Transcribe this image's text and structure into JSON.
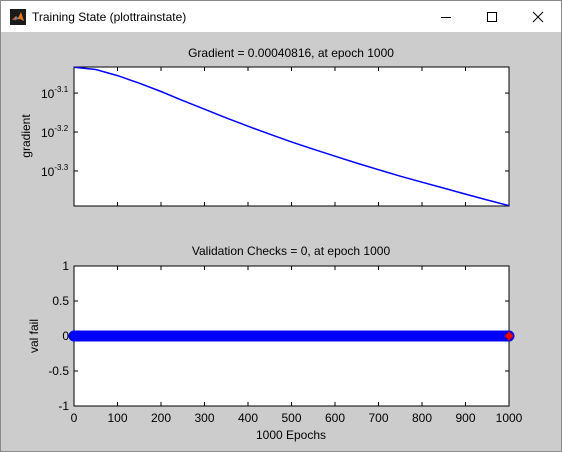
{
  "window": {
    "title": "Training State (plottrainstate)",
    "controls": [
      "minimize",
      "maximize",
      "close"
    ]
  },
  "colors": {
    "figure_bg": "#cccccc",
    "axes_bg": "#ffffff",
    "line": "#0000ff",
    "marker_end": "#ff0000"
  },
  "chart_data": [
    {
      "type": "line",
      "title": "Gradient = 0.00040816, at epoch 1000",
      "xlabel": "",
      "ylabel": "gradient",
      "yscale": "log",
      "xlim": [
        0,
        1000
      ],
      "ylim_log10": [
        -3.39,
        -3.033
      ],
      "yticks_log10": [
        -3.1,
        -3.2,
        -3.3
      ],
      "ytick_base": "10",
      "ytick_exponents": [
        "-3.1",
        "-3.2",
        "-3.3"
      ],
      "x": [
        0,
        50,
        100,
        150,
        200,
        250,
        300,
        350,
        400,
        450,
        500,
        550,
        600,
        650,
        700,
        750,
        800,
        850,
        900,
        950,
        1000
      ],
      "y": [
        0.000926,
        0.000913,
        0.000881,
        0.000842,
        0.000802,
        0.00076,
        0.000722,
        0.000686,
        0.000653,
        0.000623,
        0.000595,
        0.00057,
        0.000547,
        0.000525,
        0.000505,
        0.000486,
        0.000469,
        0.000453,
        0.000437,
        0.000422,
        0.000408
      ]
    },
    {
      "type": "line",
      "title": "Validation Checks = 0, at epoch 1000",
      "xlabel": "1000 Epochs",
      "ylabel": "val fail",
      "xlim": [
        0,
        1000
      ],
      "ylim": [
        -1,
        1
      ],
      "xticks": [
        "0",
        "100",
        "200",
        "300",
        "400",
        "500",
        "600",
        "700",
        "800",
        "900",
        "1000"
      ],
      "yticks": [
        "1",
        "0.5",
        "0",
        "-0.5",
        "-1"
      ],
      "series": [
        {
          "x_range": [
            0,
            1000
          ],
          "value": 0,
          "marker": "circle"
        }
      ],
      "end_marker": {
        "x": 1000,
        "y": 0,
        "marker": "diamond"
      }
    }
  ]
}
